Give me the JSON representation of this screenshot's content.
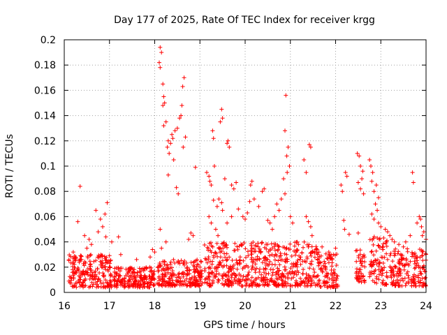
{
  "chart_data": {
    "type": "scatter",
    "title": "Day 177 of 2025, Rate Of TEC Index for receiver krgg",
    "xlabel": "GPS time / hours",
    "ylabel": "ROTI / TECUs",
    "xlim": [
      16,
      24
    ],
    "ylim": [
      0,
      0.2
    ],
    "x_ticks": [
      "16",
      "17",
      "18",
      "19",
      "20",
      "21",
      "22",
      "23",
      "24"
    ],
    "y_ticks": [
      "0",
      "0.02",
      "0.04",
      "0.06",
      "0.08",
      "0.1",
      "0.12",
      "0.14",
      "0.16",
      "0.18",
      "0.2"
    ],
    "x_tick_values": [
      16,
      17,
      18,
      19,
      20,
      21,
      22,
      23,
      24
    ],
    "y_tick_values": [
      0,
      0.02,
      0.04,
      0.06,
      0.08,
      0.1,
      0.12,
      0.14,
      0.16,
      0.18,
      0.2
    ],
    "grid": true,
    "marker": "+",
    "series_color": "#ff0000",
    "series": [
      {
        "name": "ROTI",
        "points": [
          [
            16.35,
            0.084
          ],
          [
            16.3,
            0.056
          ],
          [
            16.45,
            0.045
          ],
          [
            16.7,
            0.065
          ],
          [
            16.8,
            0.058
          ],
          [
            16.95,
            0.071
          ],
          [
            16.9,
            0.062
          ],
          [
            16.75,
            0.048
          ],
          [
            16.55,
            0.042
          ],
          [
            16.6,
            0.038
          ],
          [
            16.2,
            0.032
          ],
          [
            16.25,
            0.028
          ],
          [
            16.5,
            0.035
          ],
          [
            16.85,
            0.052
          ],
          [
            16.92,
            0.044
          ],
          [
            17.05,
            0.04
          ],
          [
            17.2,
            0.044
          ],
          [
            17.25,
            0.03
          ],
          [
            17.6,
            0.026
          ],
          [
            17.9,
            0.028
          ],
          [
            17.95,
            0.034
          ],
          [
            18.0,
            0.032
          ],
          [
            18.12,
            0.194
          ],
          [
            18.15,
            0.19
          ],
          [
            18.1,
            0.182
          ],
          [
            18.12,
            0.178
          ],
          [
            18.18,
            0.165
          ],
          [
            18.2,
            0.155
          ],
          [
            18.18,
            0.148
          ],
          [
            18.22,
            0.15
          ],
          [
            18.25,
            0.135
          ],
          [
            18.2,
            0.132
          ],
          [
            18.3,
            0.12
          ],
          [
            18.35,
            0.118
          ],
          [
            18.4,
            0.122
          ],
          [
            18.28,
            0.115
          ],
          [
            18.32,
            0.11
          ],
          [
            18.38,
            0.125
          ],
          [
            18.45,
            0.128
          ],
          [
            18.5,
            0.13
          ],
          [
            18.42,
            0.105
          ],
          [
            18.3,
            0.093
          ],
          [
            18.48,
            0.083
          ],
          [
            18.52,
            0.078
          ],
          [
            18.55,
            0.138
          ],
          [
            18.58,
            0.14
          ],
          [
            18.6,
            0.148
          ],
          [
            18.65,
            0.17
          ],
          [
            18.62,
            0.163
          ],
          [
            18.68,
            0.123
          ],
          [
            18.63,
            0.115
          ],
          [
            18.12,
            0.05
          ],
          [
            18.15,
            0.035
          ],
          [
            18.25,
            0.04
          ],
          [
            18.75,
            0.042
          ],
          [
            18.8,
            0.047
          ],
          [
            18.85,
            0.045
          ],
          [
            18.9,
            0.099
          ],
          [
            19.15,
            0.095
          ],
          [
            19.2,
            0.092
          ],
          [
            19.22,
            0.088
          ],
          [
            19.25,
            0.085
          ],
          [
            19.28,
            0.128
          ],
          [
            19.3,
            0.122
          ],
          [
            19.32,
            0.1
          ],
          [
            19.45,
            0.135
          ],
          [
            19.48,
            0.145
          ],
          [
            19.5,
            0.138
          ],
          [
            19.6,
            0.118
          ],
          [
            19.62,
            0.12
          ],
          [
            19.65,
            0.115
          ],
          [
            19.55,
            0.09
          ],
          [
            19.7,
            0.085
          ],
          [
            19.75,
            0.082
          ],
          [
            19.8,
            0.087
          ],
          [
            19.3,
            0.073
          ],
          [
            19.38,
            0.068
          ],
          [
            19.42,
            0.074
          ],
          [
            19.48,
            0.071
          ],
          [
            19.5,
            0.065
          ],
          [
            19.2,
            0.06
          ],
          [
            19.25,
            0.055
          ],
          [
            19.35,
            0.05
          ],
          [
            19.4,
            0.045
          ],
          [
            19.6,
            0.055
          ],
          [
            19.7,
            0.06
          ],
          [
            19.85,
            0.066
          ],
          [
            19.95,
            0.06
          ],
          [
            20.0,
            0.058
          ],
          [
            20.05,
            0.063
          ],
          [
            20.1,
            0.072
          ],
          [
            20.12,
            0.085
          ],
          [
            20.15,
            0.088
          ],
          [
            20.2,
            0.074
          ],
          [
            20.3,
            0.068
          ],
          [
            20.38,
            0.08
          ],
          [
            20.42,
            0.082
          ],
          [
            20.5,
            0.057
          ],
          [
            20.55,
            0.055
          ],
          [
            20.6,
            0.05
          ],
          [
            20.65,
            0.06
          ],
          [
            20.7,
            0.07
          ],
          [
            20.75,
            0.065
          ],
          [
            20.8,
            0.074
          ],
          [
            20.85,
            0.09
          ],
          [
            20.88,
            0.078
          ],
          [
            20.9,
            0.156
          ],
          [
            20.88,
            0.128
          ],
          [
            20.92,
            0.108
          ],
          [
            20.95,
            0.115
          ],
          [
            20.98,
            0.1
          ],
          [
            20.93,
            0.095
          ],
          [
            21.0,
            0.06
          ],
          [
            21.05,
            0.055
          ],
          [
            21.3,
            0.105
          ],
          [
            21.35,
            0.095
          ],
          [
            21.42,
            0.117
          ],
          [
            21.45,
            0.115
          ],
          [
            21.35,
            0.06
          ],
          [
            21.4,
            0.056
          ],
          [
            21.45,
            0.052
          ],
          [
            21.48,
            0.045
          ],
          [
            21.7,
            0.036
          ],
          [
            21.85,
            0.032
          ],
          [
            21.95,
            0.03
          ],
          [
            22.0,
            0.035
          ],
          [
            22.12,
            0.085
          ],
          [
            22.15,
            0.08
          ],
          [
            22.18,
            0.057
          ],
          [
            22.2,
            0.05
          ],
          [
            22.22,
            0.095
          ],
          [
            22.25,
            0.092
          ],
          [
            22.3,
            0.046
          ],
          [
            22.48,
            0.11
          ],
          [
            22.52,
            0.108
          ],
          [
            22.55,
            0.1
          ],
          [
            22.6,
            0.096
          ],
          [
            22.58,
            0.09
          ],
          [
            22.5,
            0.087
          ],
          [
            22.55,
            0.082
          ],
          [
            22.62,
            0.078
          ],
          [
            22.5,
            0.047
          ],
          [
            22.75,
            0.105
          ],
          [
            22.78,
            0.1
          ],
          [
            22.82,
            0.095
          ],
          [
            22.8,
            0.088
          ],
          [
            22.85,
            0.08
          ],
          [
            22.9,
            0.085
          ],
          [
            22.95,
            0.075
          ],
          [
            22.88,
            0.07
          ],
          [
            22.92,
            0.065
          ],
          [
            22.8,
            0.062
          ],
          [
            22.85,
            0.058
          ],
          [
            22.95,
            0.055
          ],
          [
            23.0,
            0.052
          ],
          [
            23.1,
            0.05
          ],
          [
            23.15,
            0.048
          ],
          [
            23.2,
            0.045
          ],
          [
            23.25,
            0.042
          ],
          [
            23.3,
            0.04
          ],
          [
            23.4,
            0.038
          ],
          [
            23.5,
            0.036
          ],
          [
            23.55,
            0.04
          ],
          [
            23.65,
            0.045
          ],
          [
            23.7,
            0.095
          ],
          [
            23.72,
            0.087
          ],
          [
            23.8,
            0.055
          ],
          [
            23.85,
            0.06
          ],
          [
            23.9,
            0.052
          ],
          [
            23.95,
            0.048
          ],
          [
            24.0,
            0.042
          ],
          [
            23.88,
            0.058
          ],
          [
            23.92,
            0.045
          ]
        ]
      }
    ],
    "dense_band": {
      "description": "dense background band of + markers",
      "segments": [
        {
          "x": [
            16.1,
            17.05
          ],
          "y": [
            0.004,
            0.03
          ]
        },
        {
          "x": [
            17.1,
            18.0
          ],
          "y": [
            0.004,
            0.02
          ]
        },
        {
          "x": [
            18.05,
            19.05
          ],
          "y": [
            0.005,
            0.026
          ]
        },
        {
          "x": [
            19.1,
            21.6
          ],
          "y": [
            0.005,
            0.04
          ]
        },
        {
          "x": [
            21.6,
            22.05
          ],
          "y": [
            0.004,
            0.032
          ]
        },
        {
          "x": [
            22.45,
            22.65
          ],
          "y": [
            0.008,
            0.034
          ]
        },
        {
          "x": [
            22.75,
            23.15
          ],
          "y": [
            0.006,
            0.045
          ]
        },
        {
          "x": [
            23.2,
            24.0
          ],
          "y": [
            0.005,
            0.035
          ]
        }
      ]
    }
  }
}
